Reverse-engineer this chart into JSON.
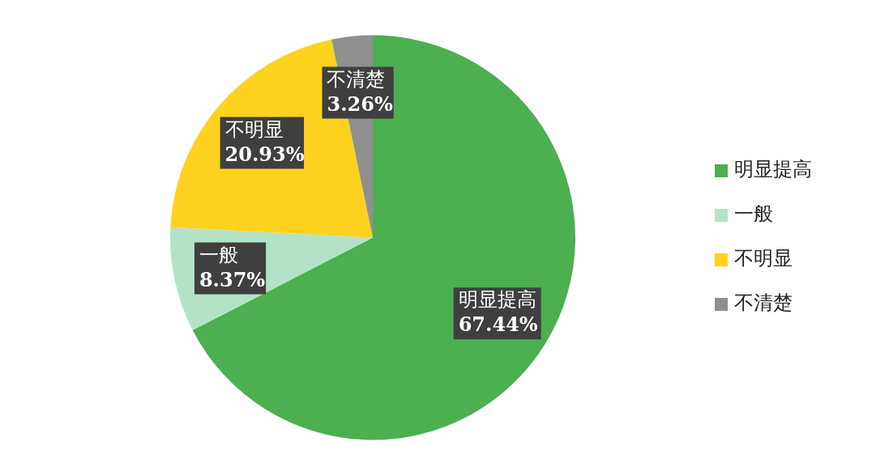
{
  "chart_data": {
    "type": "pie",
    "categories": [
      "明显提高",
      "一般",
      "不明显",
      "不清楚"
    ],
    "values": [
      67.44,
      8.37,
      20.93,
      3.26
    ],
    "colors": [
      "#4caf50",
      "#b3e3c6",
      "#ffd21f",
      "#8f8f8f"
    ],
    "value_labels": [
      "67.44%",
      "8.37%",
      "20.93%",
      "3.26%"
    ],
    "legend": "right"
  }
}
